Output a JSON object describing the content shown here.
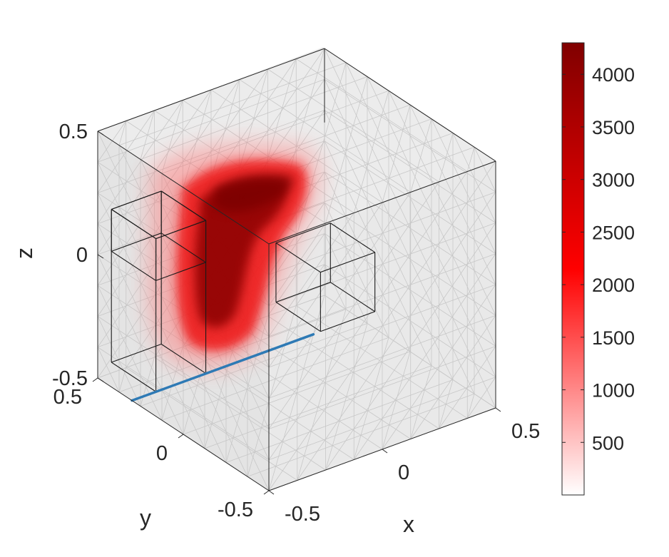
{
  "chart_data": {
    "type": "volume-heatmap",
    "title": "",
    "xlabel": "x",
    "ylabel": "y",
    "zlabel": "z",
    "xlim": [
      -0.5,
      0.5
    ],
    "ylim": [
      -0.5,
      0.5
    ],
    "zlim": [
      -0.5,
      0.5
    ],
    "x_ticks": [
      "-0.5",
      "0",
      "0.5"
    ],
    "y_ticks": [
      "-0.5",
      "0",
      "0.5"
    ],
    "z_ticks": [
      "-0.5",
      "0",
      "0.5"
    ],
    "colorbar": {
      "min": 0,
      "max": 4300,
      "ticks": [
        500,
        1000,
        1500,
        2000,
        2500,
        3000,
        3500,
        4000
      ],
      "tick_labels": [
        "500",
        "1000",
        "1500",
        "2000",
        "2500",
        "3000",
        "3500",
        "4000"
      ],
      "color_low": "#ffffff",
      "color_mid": "#ff0000",
      "color_high": "#800000"
    },
    "line_segment": {
      "color": "#2e7ab5",
      "from": [
        -0.5,
        0.3,
        -0.5
      ],
      "to": [
        0.3,
        0.3,
        -0.5
      ]
    },
    "grid": true
  }
}
